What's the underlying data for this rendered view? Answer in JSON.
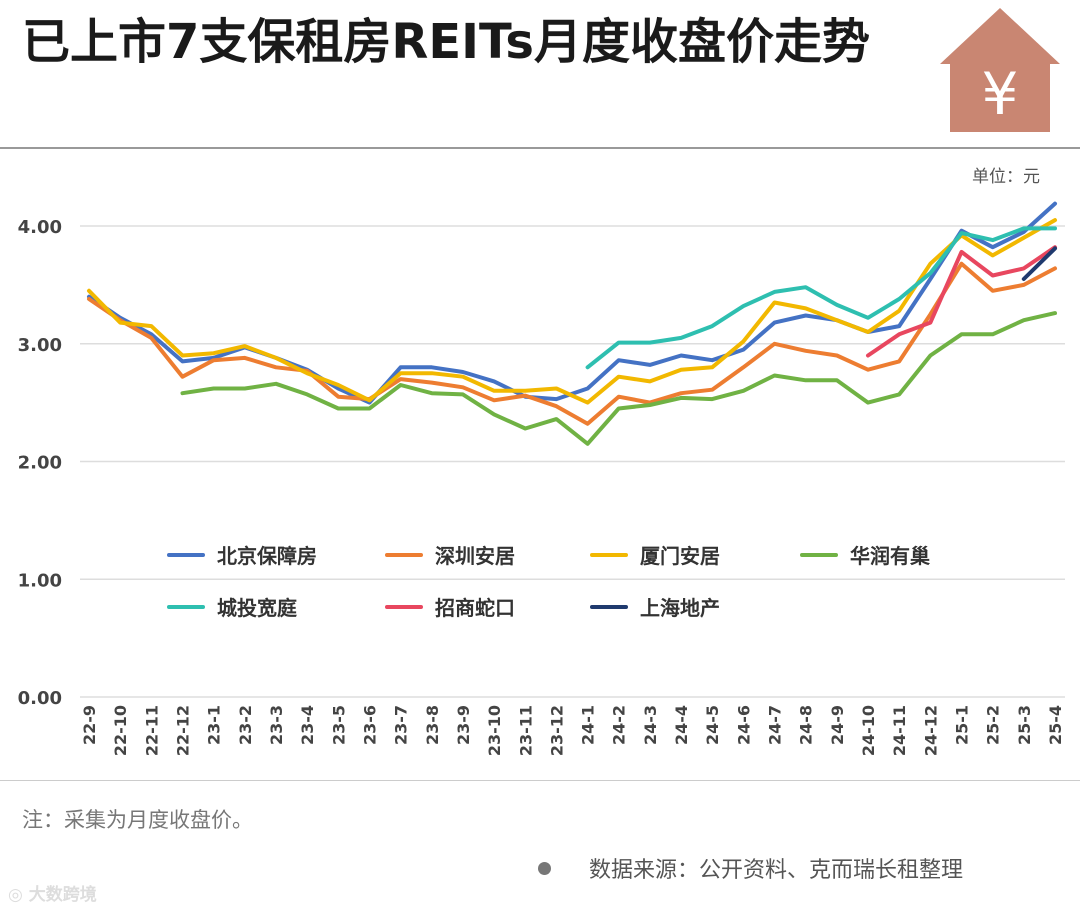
{
  "header": {
    "title": "已上市7支保租房REITs月度收盘价走势",
    "icon": "house-yen-icon",
    "icon_color": "#c98672",
    "icon_symbol": "¥"
  },
  "unit_label": "单位：元",
  "note": "注：采集为月度收盘价。",
  "source": "数据来源：公开资料、克而瑞长租整理",
  "logo_text": "大数跨境",
  "chart_data": {
    "type": "line",
    "title": "已上市7支保租房REITs月度收盘价走势",
    "xlabel": "",
    "ylabel": "",
    "ylim": [
      0,
      4
    ],
    "yticks": [
      "0.00",
      "1.00",
      "2.00",
      "3.00",
      "4.00"
    ],
    "grid": true,
    "legend_position": "center",
    "categories": [
      "22-9",
      "22-10",
      "22-11",
      "22-12",
      "23-1",
      "23-2",
      "23-3",
      "23-4",
      "23-5",
      "23-6",
      "23-7",
      "23-8",
      "23-9",
      "23-10",
      "23-11",
      "23-12",
      "24-1",
      "24-2",
      "24-3",
      "24-4",
      "24-5",
      "24-6",
      "24-7",
      "24-8",
      "24-9",
      "24-10",
      "24-11",
      "24-12",
      "25-1",
      "25-2",
      "25-3",
      "25-4"
    ],
    "series": [
      {
        "name": "北京保障房",
        "color": "#4472c4",
        "values": [
          3.4,
          3.22,
          3.08,
          2.85,
          2.88,
          2.97,
          2.88,
          2.78,
          2.62,
          2.5,
          2.8,
          2.8,
          2.76,
          2.68,
          2.55,
          2.53,
          2.62,
          2.86,
          2.82,
          2.9,
          2.86,
          2.95,
          3.18,
          3.24,
          3.2,
          3.1,
          3.15,
          3.55,
          3.96,
          3.82,
          3.95,
          4.19
        ]
      },
      {
        "name": "深圳安居",
        "color": "#ed7d31",
        "values": [
          3.38,
          3.2,
          3.05,
          2.72,
          2.86,
          2.88,
          2.8,
          2.77,
          2.55,
          2.53,
          2.7,
          2.67,
          2.63,
          2.52,
          2.56,
          2.47,
          2.32,
          2.55,
          2.5,
          2.58,
          2.61,
          2.8,
          3.0,
          2.94,
          2.9,
          2.78,
          2.85,
          3.25,
          3.68,
          3.45,
          3.5,
          3.64
        ]
      },
      {
        "name": "厦门安居",
        "color": "#f2b800",
        "values": [
          3.45,
          3.18,
          3.15,
          2.9,
          2.92,
          2.98,
          2.88,
          2.75,
          2.65,
          2.52,
          2.75,
          2.75,
          2.72,
          2.6,
          2.6,
          2.62,
          2.5,
          2.72,
          2.68,
          2.78,
          2.8,
          3.02,
          3.35,
          3.3,
          3.2,
          3.1,
          3.28,
          3.68,
          3.92,
          3.75,
          3.9,
          4.05
        ]
      },
      {
        "name": "华润有巢",
        "color": "#70b244",
        "values": [
          null,
          null,
          null,
          2.58,
          2.62,
          2.62,
          2.66,
          2.57,
          2.45,
          2.45,
          2.65,
          2.58,
          2.57,
          2.4,
          2.28,
          2.36,
          2.15,
          2.45,
          2.48,
          2.54,
          2.53,
          2.6,
          2.73,
          2.69,
          2.69,
          2.5,
          2.57,
          2.9,
          3.08,
          3.08,
          3.2,
          3.26
        ]
      },
      {
        "name": "城投宽庭",
        "color": "#2ebfb0",
        "values": [
          null,
          null,
          null,
          null,
          null,
          null,
          null,
          null,
          null,
          null,
          null,
          null,
          null,
          null,
          null,
          null,
          2.8,
          3.01,
          3.01,
          3.05,
          3.15,
          3.32,
          3.44,
          3.48,
          3.33,
          3.22,
          3.38,
          3.6,
          3.94,
          3.88,
          3.98,
          3.98
        ]
      },
      {
        "name": "招商蛇口",
        "color": "#e8475f",
        "values": [
          null,
          null,
          null,
          null,
          null,
          null,
          null,
          null,
          null,
          null,
          null,
          null,
          null,
          null,
          null,
          null,
          null,
          null,
          null,
          null,
          null,
          null,
          null,
          null,
          null,
          2.9,
          3.08,
          3.18,
          3.78,
          3.58,
          3.64,
          3.82
        ]
      },
      {
        "name": "上海地产",
        "color": "#1f3a6e",
        "values": [
          null,
          null,
          null,
          null,
          null,
          null,
          null,
          null,
          null,
          null,
          null,
          null,
          null,
          null,
          null,
          null,
          null,
          null,
          null,
          null,
          null,
          null,
          null,
          null,
          null,
          null,
          null,
          null,
          null,
          null,
          3.55,
          3.81
        ]
      }
    ]
  }
}
